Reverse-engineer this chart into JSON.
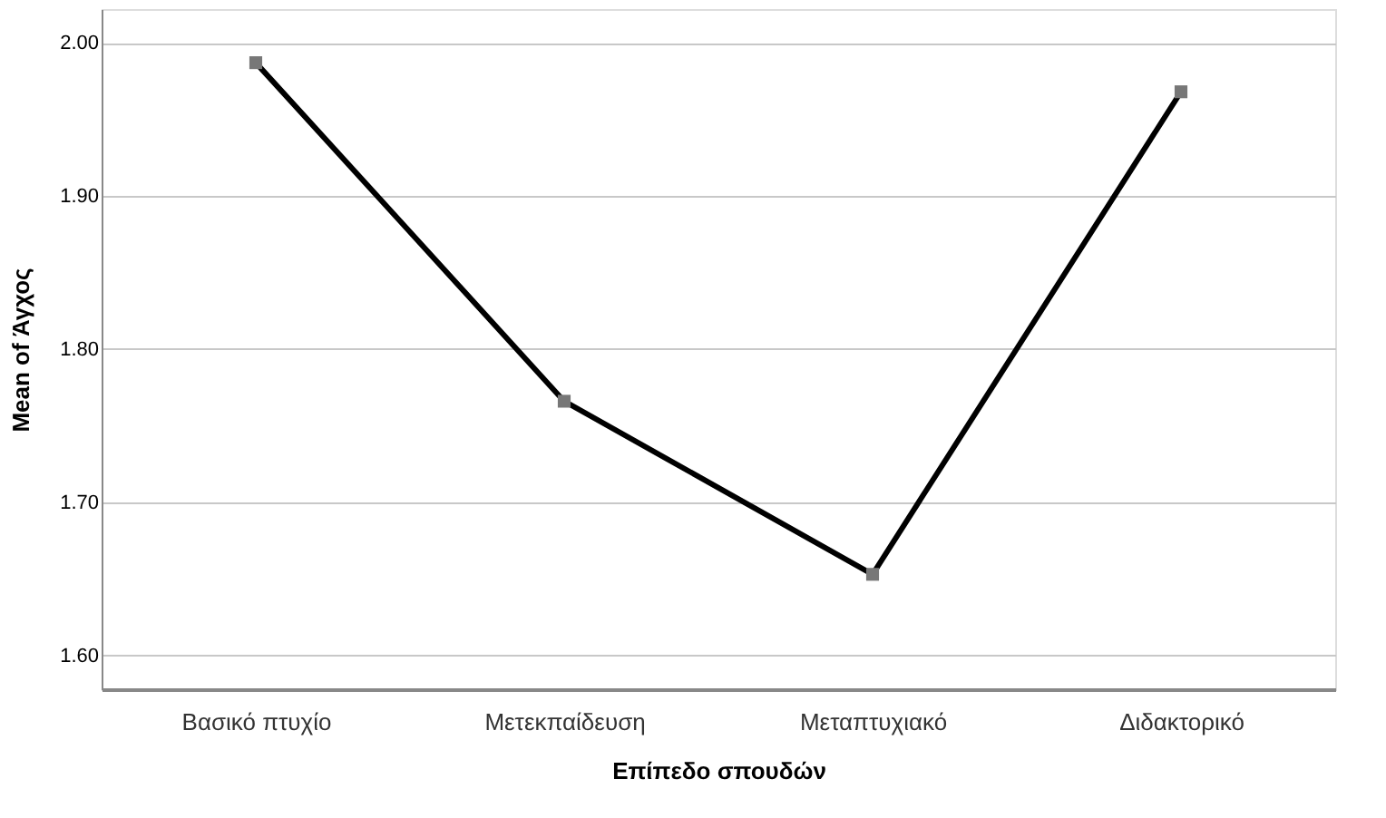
{
  "chart_data": {
    "type": "line",
    "xlabel": "Επίπεδο σπουδών",
    "ylabel": "Mean of Άγχος",
    "categories": [
      "Βασικό πτυχίο",
      "Μετεκπαίδευση",
      "Μεταπτυχιακό",
      "Διδακτορικό"
    ],
    "series": [
      {
        "color": "#000000",
        "values": [
          1.987,
          1.766,
          1.653,
          1.968
        ]
      }
    ],
    "marker": "square",
    "line_style": "solid",
    "ylim": [
      1.578,
      2.022
    ],
    "yticks": [
      {
        "value": 1.6,
        "label": "1.60"
      },
      {
        "value": 1.7,
        "label": "1.70"
      },
      {
        "value": 1.8,
        "label": "1.80"
      },
      {
        "value": 1.9,
        "label": "1.90"
      },
      {
        "value": 2.0,
        "label": "2.00"
      }
    ],
    "grid": "y"
  }
}
